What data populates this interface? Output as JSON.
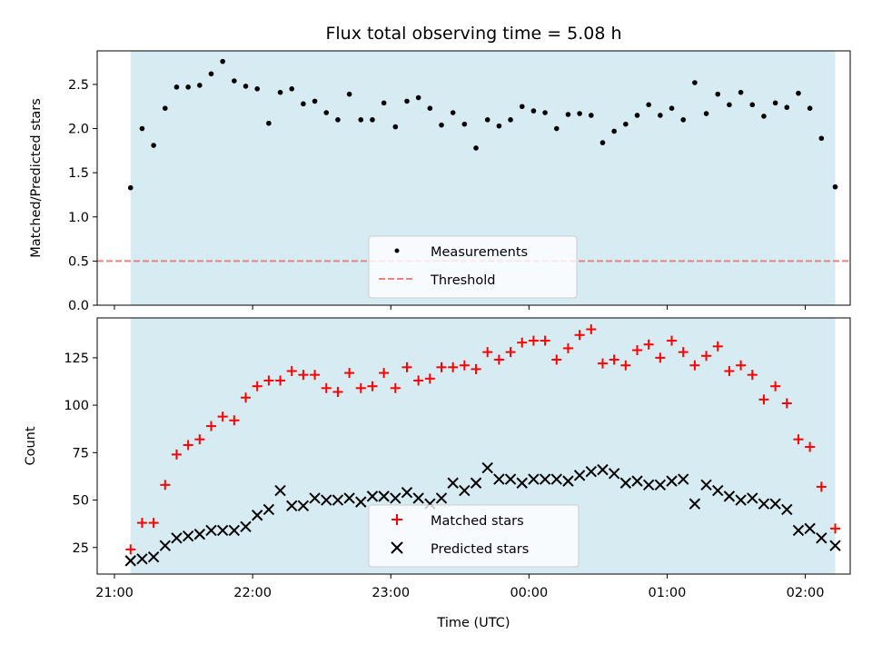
{
  "chart_data": [
    {
      "type": "scatter",
      "title": "Flux total observing time = 5.08 h",
      "xlabel": "",
      "ylabel": "Matched/Predicted stars",
      "ylim": [
        0,
        2.88
      ],
      "yticks": [
        "0.0",
        "0.5",
        "1.0",
        "1.5",
        "2.0",
        "2.5"
      ],
      "ytick_values": [
        0,
        0.5,
        1.0,
        1.5,
        2.0,
        2.5
      ],
      "shaded_span_minutes": [
        7,
        313
      ],
      "threshold": 0.5,
      "legend_position": "lower center",
      "series": [
        {
          "name": "Measurements",
          "marker": "dot",
          "color": "#000000",
          "x": [
            7,
            12,
            17,
            22,
            27,
            32,
            37,
            42,
            47,
            52,
            57,
            62,
            67,
            72,
            77,
            82,
            87,
            92,
            97,
            102,
            107,
            112,
            117,
            122,
            127,
            132,
            137,
            142,
            147,
            152,
            157,
            162,
            167,
            172,
            177,
            182,
            187,
            192,
            197,
            202,
            207,
            212,
            217,
            222,
            227,
            232,
            237,
            242,
            247,
            252,
            257,
            262,
            267,
            272,
            277,
            282,
            287,
            292,
            297,
            302,
            307,
            313
          ],
          "y": [
            1.33,
            2.0,
            1.81,
            2.23,
            2.47,
            2.47,
            2.49,
            2.62,
            2.76,
            2.54,
            2.48,
            2.45,
            2.06,
            2.41,
            2.45,
            2.28,
            2.31,
            2.18,
            2.1,
            2.39,
            2.1,
            2.1,
            2.29,
            2.02,
            2.31,
            2.35,
            2.23,
            2.04,
            2.18,
            2.05,
            1.78,
            2.1,
            2.03,
            2.1,
            2.25,
            2.2,
            2.18,
            2.0,
            2.16,
            2.17,
            2.15,
            1.84,
            1.97,
            2.05,
            2.15,
            2.27,
            2.15,
            2.23,
            2.1,
            2.52,
            2.17,
            2.39,
            2.27,
            2.41,
            2.27,
            2.14,
            2.29,
            2.24,
            2.4,
            2.23,
            1.89,
            1.34
          ]
        },
        {
          "name": "Threshold",
          "marker": "dashed-line",
          "color": "#f08080"
        }
      ]
    },
    {
      "type": "scatter",
      "title": "",
      "xlabel": "Time (UTC)",
      "ylabel": "Count",
      "ylim": [
        11,
        146
      ],
      "yticks": [
        "25",
        "50",
        "75",
        "100",
        "125"
      ],
      "ytick_values": [
        25,
        50,
        75,
        100,
        125
      ],
      "xticks": [
        "21:00",
        "22:00",
        "23:00",
        "00:00",
        "01:00",
        "02:00"
      ],
      "xtick_minutes": [
        0,
        60,
        120,
        180,
        240,
        300
      ],
      "xlim_minutes": [
        -7.5,
        319.5
      ],
      "shaded_span_minutes": [
        7,
        313
      ],
      "legend_position": "lower center",
      "series": [
        {
          "name": "Matched stars",
          "marker": "plus",
          "color": "#ff0000",
          "x": [
            7,
            12,
            17,
            22,
            27,
            32,
            37,
            42,
            47,
            52,
            57,
            62,
            67,
            72,
            77,
            82,
            87,
            92,
            97,
            102,
            107,
            112,
            117,
            122,
            127,
            132,
            137,
            142,
            147,
            152,
            157,
            162,
            167,
            172,
            177,
            182,
            187,
            192,
            197,
            202,
            207,
            212,
            217,
            222,
            227,
            232,
            237,
            242,
            247,
            252,
            257,
            262,
            267,
            272,
            277,
            282,
            287,
            292,
            297,
            302,
            307,
            313
          ],
          "y": [
            24,
            38,
            38,
            58,
            74,
            79,
            82,
            89,
            94,
            92,
            104,
            110,
            113,
            113,
            118,
            116,
            116,
            109,
            107,
            117,
            109,
            110,
            117,
            109,
            120,
            113,
            114,
            120,
            120,
            121,
            119,
            128,
            124,
            128,
            133,
            134,
            134,
            124,
            130,
            137,
            140,
            122,
            124,
            121,
            129,
            132,
            125,
            134,
            128,
            121,
            126,
            131,
            118,
            121,
            116,
            103,
            110,
            101,
            82,
            78,
            57,
            35
          ]
        },
        {
          "name": "Predicted stars",
          "marker": "x",
          "color": "#000000",
          "x": [
            7,
            12,
            17,
            22,
            27,
            32,
            37,
            42,
            47,
            52,
            57,
            62,
            67,
            72,
            77,
            82,
            87,
            92,
            97,
            102,
            107,
            112,
            117,
            122,
            127,
            132,
            137,
            142,
            147,
            152,
            157,
            162,
            167,
            172,
            177,
            182,
            187,
            192,
            197,
            202,
            207,
            212,
            217,
            222,
            227,
            232,
            237,
            242,
            247,
            252,
            257,
            262,
            267,
            272,
            277,
            282,
            287,
            292,
            297,
            302,
            307,
            313
          ],
          "y": [
            18,
            19,
            20,
            26,
            30,
            31,
            32,
            34,
            34,
            34,
            36,
            42,
            45,
            55,
            47,
            47,
            51,
            50,
            50,
            51,
            49,
            52,
            52,
            51,
            54,
            51,
            48,
            51,
            59,
            55,
            59,
            67,
            61,
            61,
            59,
            61,
            61,
            61,
            60,
            63,
            65,
            66,
            64,
            59,
            60,
            58,
            58,
            60,
            61,
            48,
            58,
            55,
            52,
            50,
            51,
            48,
            48,
            45,
            34,
            35,
            30,
            26
          ]
        }
      ]
    }
  ]
}
